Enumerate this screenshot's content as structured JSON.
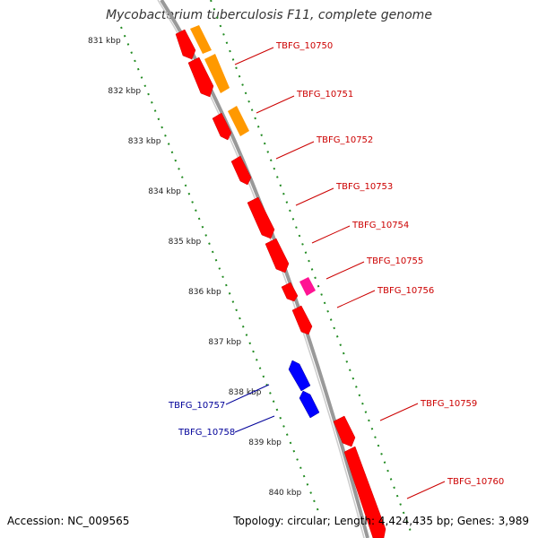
{
  "title": "Mycobacterium tuberculosis F11, complete genome",
  "footer": {
    "accession": "Accession: NC_009565",
    "stats": "Topology: circular; Length: 4,424,435 bp; Genes: 3,989"
  },
  "colors": {
    "forward_gene": "#ff0000",
    "reverse_gene": "#0000ff",
    "orange_feature": "#ff9900",
    "pink_feature": "#ff1493",
    "forward_label": "#cc0000",
    "reverse_label": "#000099",
    "kbp_ticks": "#228b22",
    "backbone": "#888888"
  },
  "kbp_ticks": [
    "831 kbp",
    "832 kbp",
    "833 kbp",
    "834 kbp",
    "835 kbp",
    "836 kbp",
    "837 kbp",
    "838 kbp",
    "839 kbp",
    "840 kbp"
  ],
  "gene_labels_forward": [
    "TBFG_10750",
    "TBFG_10751",
    "TBFG_10752",
    "TBFG_10753",
    "TBFG_10754",
    "TBFG_10755",
    "TBFG_10756",
    "TBFG_10759",
    "TBFG_10760"
  ],
  "gene_labels_reverse": [
    "TBFG_10757",
    "TBFG_10758"
  ]
}
